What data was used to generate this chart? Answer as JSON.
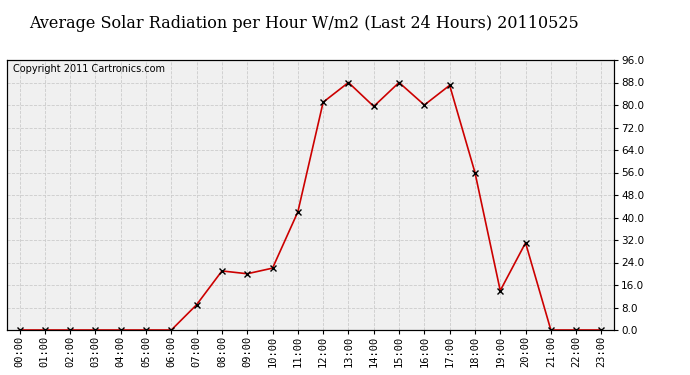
{
  "title": "Average Solar Radiation per Hour W/m2 (Last 24 Hours) 20110525",
  "copyright": "Copyright 2011 Cartronics.com",
  "x_labels": [
    "00:00",
    "01:00",
    "02:00",
    "03:00",
    "04:00",
    "05:00",
    "06:00",
    "07:00",
    "08:00",
    "09:00",
    "10:00",
    "11:00",
    "12:00",
    "13:00",
    "14:00",
    "15:00",
    "16:00",
    "17:00",
    "18:00",
    "19:00",
    "20:00",
    "21:00",
    "22:00",
    "23:00"
  ],
  "y_values": [
    0.0,
    0.0,
    0.0,
    0.0,
    0.0,
    0.0,
    0.0,
    9.0,
    21.0,
    20.0,
    22.0,
    42.0,
    81.0,
    88.0,
    79.5,
    88.0,
    80.0,
    87.0,
    56.0,
    14.0,
    31.0,
    0.0,
    0.0,
    0.0
  ],
  "line_color": "#cc0000",
  "marker": "x",
  "marker_color": "#000000",
  "bg_color": "#ffffff",
  "plot_bg_color": "#f0f0f0",
  "grid_color": "#cccccc",
  "ylim": [
    0.0,
    96.0
  ],
  "yticks": [
    0.0,
    8.0,
    16.0,
    24.0,
    32.0,
    40.0,
    48.0,
    56.0,
    64.0,
    72.0,
    80.0,
    88.0,
    96.0
  ],
  "title_fontsize": 11.5,
  "copyright_fontsize": 7,
  "tick_fontsize": 7.5
}
